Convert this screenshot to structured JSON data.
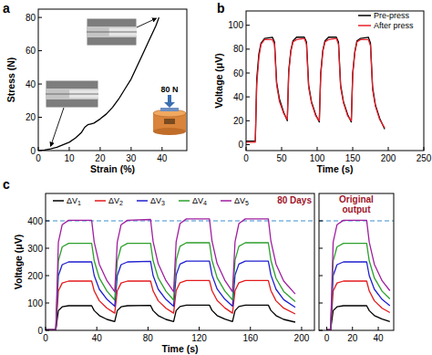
{
  "chart_data": [
    {
      "type": "line",
      "panel": "a",
      "xlabel": "Strain (%)",
      "ylabel": "Stress (N)",
      "annotation": "80 N",
      "x": [
        0,
        2,
        4,
        6,
        8,
        10,
        12,
        14,
        15,
        16,
        17,
        18,
        20,
        22,
        24,
        26,
        28,
        30,
        32,
        34,
        36,
        38,
        39
      ],
      "series": [
        {
          "color": "#000000",
          "values": [
            0,
            0.3,
            1,
            2,
            3.5,
            5,
            7.5,
            11,
            14,
            15.5,
            16,
            16.5,
            19,
            22,
            26,
            31,
            37,
            43,
            51,
            59,
            67,
            75,
            80
          ]
        }
      ],
      "xlim": [
        0,
        48
      ],
      "xticks": [
        0,
        10,
        20,
        30,
        40
      ],
      "ylim": [
        0,
        85
      ],
      "yticks": [
        0,
        20,
        40,
        60,
        80
      ]
    },
    {
      "type": "line",
      "panel": "b",
      "xlabel": "Time (s)",
      "ylabel": "Voltage (μV)",
      "legend": "upper right",
      "x": [
        0,
        8,
        13,
        15,
        18,
        21,
        26,
        37,
        40,
        43,
        47,
        53,
        58,
        60,
        63,
        66,
        71,
        82,
        85,
        88,
        92,
        98,
        103,
        105,
        108,
        111,
        116,
        127,
        130,
        133,
        137,
        143,
        148,
        150,
        153,
        156,
        161,
        172,
        175,
        178,
        182,
        188,
        195
      ],
      "series": [
        {
          "name": "Pre-press",
          "color": "#000000",
          "values": [
            3,
            3,
            3,
            55,
            76,
            85,
            89,
            90,
            86,
            52,
            38,
            27,
            20,
            62,
            79,
            87,
            90,
            90,
            86,
            50,
            36,
            25,
            19,
            60,
            79,
            87,
            90,
            90,
            86,
            50,
            36,
            25,
            19,
            60,
            78,
            87,
            89,
            90,
            85,
            48,
            33,
            22,
            13
          ]
        },
        {
          "name": "After press",
          "color": "#e8202a",
          "values": [
            2,
            2,
            2,
            50,
            73,
            84,
            88,
            88,
            84,
            50,
            36,
            26,
            21,
            60,
            78,
            86,
            88,
            89,
            84,
            48,
            35,
            24,
            20,
            58,
            78,
            86,
            88,
            89,
            84,
            48,
            35,
            24,
            20,
            58,
            77,
            86,
            88,
            88,
            83,
            46,
            32,
            21,
            14
          ]
        }
      ],
      "xlim": [
        0,
        250
      ],
      "xticks": [
        0,
        50,
        100,
        150,
        200,
        250
      ],
      "ylim": [
        -5,
        112
      ],
      "yticks": [
        0,
        20,
        40,
        60,
        80,
        100
      ]
    },
    {
      "type": "line",
      "panel": "c",
      "xlabel": "Time (s)",
      "ylabel": "Voltage (μV)",
      "legend": "upper left",
      "annotation": "80 Days",
      "hline": 400,
      "x": [
        0,
        8,
        10,
        13,
        18,
        36,
        38,
        42,
        48,
        54,
        56,
        59,
        64,
        82,
        84,
        88,
        94,
        100,
        102,
        105,
        110,
        128,
        130,
        134,
        140,
        146,
        148,
        151,
        156,
        174,
        176,
        180,
        186,
        195
      ],
      "series": [
        {
          "name": "ΔV1",
          "color": "#000000",
          "values": [
            2,
            2,
            72,
            86,
            90,
            90,
            72,
            54,
            40,
            32,
            72,
            86,
            90,
            91,
            72,
            54,
            40,
            32,
            72,
            87,
            92,
            92,
            73,
            54,
            41,
            32,
            72,
            87,
            92,
            92,
            73,
            54,
            40,
            30
          ]
        },
        {
          "name": "ΔV2",
          "color": "#e31a1c",
          "values": [
            2,
            2,
            144,
            173,
            180,
            180,
            144,
            108,
            81,
            63,
            144,
            173,
            180,
            180,
            144,
            108,
            81,
            63,
            145,
            174,
            182,
            182,
            145,
            109,
            82,
            63,
            145,
            174,
            182,
            182,
            145,
            108,
            81,
            60
          ]
        },
        {
          "name": "ΔV3",
          "color": "#1f1fd0",
          "values": [
            2,
            2,
            200,
            240,
            250,
            250,
            200,
            150,
            113,
            88,
            200,
            240,
            250,
            252,
            200,
            150,
            113,
            88,
            202,
            242,
            253,
            253,
            202,
            151,
            114,
            88,
            202,
            242,
            253,
            253,
            202,
            150,
            112,
            84
          ]
        },
        {
          "name": "ΔV4",
          "color": "#2ca02c",
          "values": [
            2,
            2,
            254,
            305,
            318,
            318,
            254,
            191,
            143,
            111,
            254,
            305,
            318,
            318,
            254,
            191,
            143,
            111,
            256,
            307,
            320,
            320,
            256,
            192,
            144,
            111,
            256,
            307,
            320,
            320,
            256,
            190,
            142,
            105
          ]
        },
        {
          "name": "ΔV5",
          "color": "#a01ea0",
          "values": [
            2,
            2,
            322,
            386,
            402,
            402,
            322,
            241,
            181,
            141,
            322,
            386,
            402,
            405,
            324,
            243,
            182,
            141,
            324,
            390,
            407,
            407,
            326,
            244,
            183,
            141,
            324,
            390,
            407,
            407,
            326,
            242,
            180,
            133
          ]
        }
      ],
      "xlim": [
        0,
        210
      ],
      "xticks": [
        0,
        40,
        80,
        120,
        160,
        200
      ],
      "ylim": [
        0,
        500
      ],
      "yticks": [
        0,
        100,
        200,
        300,
        400
      ]
    },
    {
      "type": "line",
      "title": "Original output",
      "hline": 400,
      "tick_labels": "x",
      "x": [
        0,
        3,
        5,
        8,
        13,
        31,
        33,
        37,
        43,
        49
      ],
      "series": [
        {
          "color": "#000000",
          "values": [
            2,
            2,
            72,
            86,
            90,
            90,
            72,
            54,
            41,
            32
          ]
        },
        {
          "color": "#e31a1c",
          "values": [
            2,
            2,
            144,
            173,
            180,
            180,
            144,
            108,
            81,
            65
          ]
        },
        {
          "color": "#1f1fd0",
          "values": [
            2,
            2,
            200,
            240,
            250,
            250,
            200,
            150,
            113,
            90
          ]
        },
        {
          "color": "#2ca02c",
          "values": [
            2,
            2,
            254,
            305,
            318,
            318,
            254,
            191,
            143,
            115
          ]
        },
        {
          "color": "#a01ea0",
          "values": [
            2,
            2,
            322,
            386,
            402,
            402,
            322,
            241,
            181,
            145
          ]
        }
      ],
      "xlim": [
        -6,
        52
      ],
      "xticks": [
        0,
        20,
        40
      ],
      "ylim": [
        0,
        500
      ],
      "yticks": [
        0,
        100,
        200,
        300,
        400
      ]
    }
  ]
}
